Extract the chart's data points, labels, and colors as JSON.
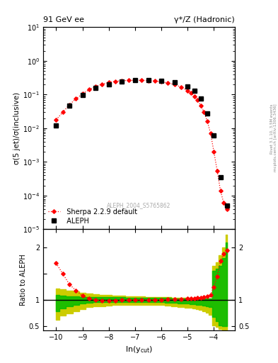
{
  "title_left": "91 GeV ee",
  "title_right": "γ*/Z (Hadronic)",
  "ylabel_main": "σ(5 jet)/σ(inclusive)",
  "ylabel_ratio": "Ratio to ALEPH",
  "xlabel": "ln(y$_{cut}$)",
  "watermark": "ALEPH_2004_S5765862",
  "right_label": "Rivet 3.1.10, 3.5M events\nmcplots.cern.ch [arXiv:1306.3436]",
  "xlim": [
    -10.5,
    -3.2
  ],
  "ylim_main": [
    1e-05,
    10
  ],
  "ylim_ratio": [
    0.42,
    2.35
  ],
  "aleph_x": [
    -10.0,
    -9.5,
    -9.0,
    -8.5,
    -8.0,
    -7.5,
    -7.0,
    -6.5,
    -6.0,
    -5.5,
    -5.0,
    -4.75,
    -4.5,
    -4.25,
    -4.0,
    -3.75,
    -3.5
  ],
  "aleph_y": [
    0.012,
    0.048,
    0.095,
    0.155,
    0.205,
    0.245,
    0.265,
    0.27,
    0.26,
    0.235,
    0.175,
    0.13,
    0.075,
    0.028,
    0.006,
    0.00035,
    5e-05
  ],
  "sherpa_x": [
    -10.0,
    -9.75,
    -9.5,
    -9.25,
    -9.0,
    -8.75,
    -8.5,
    -8.25,
    -8.0,
    -7.75,
    -7.5,
    -7.25,
    -7.0,
    -6.75,
    -6.5,
    -6.25,
    -6.0,
    -5.75,
    -5.5,
    -5.25,
    -5.0,
    -4.875,
    -4.75,
    -4.625,
    -4.5,
    -4.375,
    -4.25,
    -4.125,
    -4.0,
    -3.875,
    -3.75,
    -3.625,
    -3.5
  ],
  "sherpa_y": [
    0.018,
    0.03,
    0.05,
    0.075,
    0.105,
    0.14,
    0.175,
    0.205,
    0.228,
    0.248,
    0.258,
    0.264,
    0.266,
    0.265,
    0.26,
    0.252,
    0.24,
    0.222,
    0.198,
    0.168,
    0.132,
    0.113,
    0.09,
    0.068,
    0.048,
    0.03,
    0.016,
    0.007,
    0.002,
    0.00055,
    0.00014,
    6e-05,
    4e-05
  ],
  "ratio_x": [
    -10.0,
    -9.75,
    -9.5,
    -9.25,
    -9.0,
    -8.75,
    -8.5,
    -8.25,
    -8.0,
    -7.75,
    -7.5,
    -7.25,
    -7.0,
    -6.75,
    -6.5,
    -6.25,
    -6.0,
    -5.75,
    -5.5,
    -5.25,
    -5.0,
    -4.875,
    -4.75,
    -4.625,
    -4.5,
    -4.375,
    -4.25,
    -4.125,
    -4.0,
    -3.875,
    -3.75,
    -3.625,
    -3.5
  ],
  "ratio_y": [
    1.7,
    1.5,
    1.3,
    1.18,
    1.08,
    1.03,
    1.0,
    0.99,
    0.985,
    0.99,
    0.995,
    0.998,
    1.0,
    1.002,
    1.005,
    1.005,
    1.007,
    1.01,
    1.015,
    1.02,
    1.025,
    1.03,
    1.035,
    1.04,
    1.045,
    1.055,
    1.07,
    1.1,
    1.25,
    1.45,
    1.75,
    1.88,
    1.95
  ],
  "green_band_lo": [
    0.78,
    0.84,
    0.88,
    0.91,
    0.93,
    0.945,
    0.955,
    0.96,
    0.963,
    0.965,
    0.966,
    0.966,
    0.966,
    0.965,
    0.963,
    0.96,
    0.957,
    0.952,
    0.946,
    0.939,
    0.93,
    0.925,
    0.92,
    0.912,
    0.905,
    0.895,
    0.882,
    0.862,
    0.68,
    0.6,
    0.52,
    0.5,
    0.5
  ],
  "green_band_hi": [
    1.1,
    1.08,
    1.07,
    1.065,
    1.062,
    1.06,
    1.058,
    1.056,
    1.054,
    1.052,
    1.05,
    1.048,
    1.046,
    1.044,
    1.042,
    1.04,
    1.038,
    1.036,
    1.034,
    1.032,
    1.03,
    1.028,
    1.026,
    1.025,
    1.024,
    1.023,
    1.022,
    1.022,
    1.55,
    1.6,
    1.65,
    1.8,
    2.1
  ],
  "yellow_band_lo": [
    0.62,
    0.7,
    0.75,
    0.79,
    0.83,
    0.86,
    0.875,
    0.885,
    0.895,
    0.903,
    0.908,
    0.912,
    0.913,
    0.912,
    0.91,
    0.906,
    0.901,
    0.893,
    0.883,
    0.871,
    0.857,
    0.848,
    0.837,
    0.823,
    0.806,
    0.784,
    0.756,
    0.718,
    0.52,
    0.48,
    0.44,
    0.42,
    0.42
  ],
  "yellow_band_hi": [
    1.22,
    1.2,
    1.18,
    1.16,
    1.14,
    1.12,
    1.11,
    1.1,
    1.09,
    1.085,
    1.08,
    1.075,
    1.07,
    1.066,
    1.062,
    1.058,
    1.055,
    1.052,
    1.048,
    1.045,
    1.042,
    1.04,
    1.037,
    1.035,
    1.033,
    1.032,
    1.03,
    1.03,
    1.65,
    1.72,
    1.85,
    2.0,
    2.25
  ],
  "color_aleph": "#000000",
  "color_sherpa": "#ff0000",
  "color_green": "#00bb00",
  "color_yellow": "#cccc00",
  "legend_aleph": "  ALEPH",
  "legend_sherpa": "  Sherpa 2.2.9 default"
}
